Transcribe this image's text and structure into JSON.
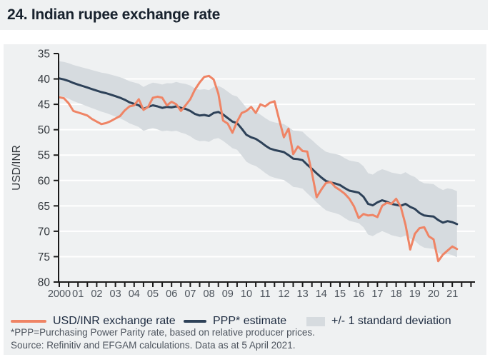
{
  "header": {
    "title": "24. Indian rupee exchange rate"
  },
  "colors": {
    "background": "#eff1f2",
    "gridline": "#ffffff",
    "axis": "#1a1a1a",
    "fx_line": "#ef8465",
    "ppp_line": "#2d4158",
    "band": "#d6dbdf",
    "y_tick_label": "#33383d",
    "x_tick_label": "#4d545c"
  },
  "chart_data": {
    "type": "line",
    "title": "24. Indian rupee exchange rate",
    "xlabel": "",
    "ylabel": "USD/INR",
    "grid": true,
    "legend_position": "bottom",
    "y_axis": {
      "min": 35,
      "max": 80,
      "step": 5,
      "inverted": true,
      "ticks": [
        35,
        40,
        45,
        50,
        55,
        60,
        65,
        70,
        75,
        80
      ]
    },
    "x_axis": {
      "start": 2000,
      "end": 2022,
      "minor_tick_step": 0.5,
      "tick_labels": [
        "2000",
        "01",
        "02",
        "03",
        "04",
        "05",
        "06",
        "07",
        "08",
        "09",
        "10",
        "11",
        "12",
        "13",
        "14",
        "15",
        "16",
        "17",
        "18",
        "19",
        "20",
        "21"
      ]
    },
    "x": [
      2000.0,
      2000.25,
      2000.5,
      2000.75,
      2001.0,
      2001.25,
      2001.5,
      2001.75,
      2002.0,
      2002.25,
      2002.5,
      2002.75,
      2003.0,
      2003.25,
      2003.5,
      2003.75,
      2004.0,
      2004.25,
      2004.5,
      2004.75,
      2005.0,
      2005.25,
      2005.5,
      2005.75,
      2006.0,
      2006.25,
      2006.5,
      2006.75,
      2007.0,
      2007.25,
      2007.5,
      2007.75,
      2008.0,
      2008.25,
      2008.5,
      2008.75,
      2009.0,
      2009.25,
      2009.5,
      2009.75,
      2010.0,
      2010.25,
      2010.5,
      2010.75,
      2011.0,
      2011.25,
      2011.5,
      2011.75,
      2012.0,
      2012.25,
      2012.5,
      2012.75,
      2013.0,
      2013.25,
      2013.5,
      2013.75,
      2014.0,
      2014.25,
      2014.5,
      2014.75,
      2015.0,
      2015.25,
      2015.5,
      2015.75,
      2016.0,
      2016.25,
      2016.5,
      2016.75,
      2017.0,
      2017.25,
      2017.5,
      2017.75,
      2018.0,
      2018.25,
      2018.5,
      2018.75,
      2019.0,
      2019.25,
      2019.5,
      2019.75,
      2020.0,
      2020.25,
      2020.5,
      2020.75,
      2021.0,
      2021.25
    ],
    "series": [
      {
        "name": "USD/INR exchange rate",
        "color": "#ef8465",
        "values": [
          43.6,
          43.8,
          44.8,
          46.3,
          46.6,
          46.9,
          47.2,
          47.9,
          48.4,
          48.9,
          48.7,
          48.3,
          47.8,
          47.3,
          46.2,
          45.4,
          45.2,
          44.0,
          46.1,
          45.5,
          43.7,
          43.5,
          43.7,
          45.2,
          44.5,
          45.0,
          46.3,
          45.2,
          44.0,
          42.1,
          40.7,
          39.6,
          39.4,
          40.1,
          42.9,
          48.2,
          48.8,
          50.6,
          48.4,
          46.7,
          46.3,
          45.5,
          46.7,
          45.0,
          45.4,
          44.7,
          44.4,
          48.0,
          51.5,
          49.8,
          54.8,
          53.3,
          54.2,
          54.3,
          58.5,
          63.3,
          61.8,
          60.5,
          60.3,
          61.3,
          61.9,
          62.6,
          63.6,
          65.1,
          67.4,
          66.6,
          66.9,
          66.8,
          67.2,
          65.0,
          64.4,
          64.6,
          63.6,
          65.2,
          68.7,
          73.6,
          70.5,
          69.4,
          69.2,
          71.0,
          71.6,
          75.9,
          74.6,
          73.8,
          73.0,
          73.5
        ]
      },
      {
        "name": "PPP* estimate",
        "color": "#2d4158",
        "values": [
          39.9,
          40.1,
          40.4,
          40.8,
          41.1,
          41.4,
          41.7,
          42.0,
          42.3,
          42.6,
          42.8,
          43.1,
          43.4,
          43.7,
          44.1,
          44.6,
          44.9,
          45.2,
          45.9,
          45.5,
          45.2,
          45.4,
          45.7,
          45.5,
          45.6,
          45.4,
          45.7,
          45.9,
          46.3,
          46.9,
          47.2,
          47.1,
          47.3,
          46.7,
          46.5,
          47.0,
          47.7,
          48.4,
          48.7,
          49.8,
          51.0,
          51.5,
          51.8,
          52.4,
          53.1,
          53.7,
          54.0,
          54.2,
          54.4,
          55.0,
          55.7,
          55.8,
          56.0,
          56.9,
          57.7,
          58.6,
          59.4,
          60.1,
          60.4,
          60.6,
          60.9,
          61.5,
          62.0,
          62.2,
          62.4,
          63.2,
          64.6,
          64.9,
          64.3,
          63.9,
          64.2,
          64.6,
          64.8,
          65.0,
          64.6,
          65.2,
          65.6,
          66.4,
          66.9,
          67.0,
          67.1,
          67.8,
          68.3,
          68.0,
          68.2,
          68.6
        ]
      },
      {
        "name": "+/- 1 standard deviation",
        "type": "band",
        "around": "PPP* estimate",
        "color": "#d6dbdf",
        "halfwidth": [
          3.4,
          3.45,
          3.5,
          3.55,
          3.6,
          3.65,
          3.7,
          3.75,
          3.8,
          3.85,
          3.9,
          3.95,
          4.0,
          4.05,
          4.1,
          4.15,
          4.2,
          4.27,
          4.33,
          4.4,
          4.47,
          4.53,
          4.6,
          4.67,
          4.73,
          4.8,
          4.87,
          4.93,
          5.0,
          5.03,
          5.05,
          5.08,
          5.1,
          5.13,
          5.15,
          5.18,
          5.2,
          5.23,
          5.25,
          5.28,
          5.3,
          5.33,
          5.35,
          5.38,
          5.4,
          5.43,
          5.45,
          5.48,
          5.5,
          5.53,
          5.55,
          5.58,
          5.6,
          5.63,
          5.67,
          5.7,
          5.73,
          5.77,
          5.8,
          5.83,
          5.87,
          5.9,
          5.93,
          5.97,
          6.0,
          6.02,
          6.05,
          6.07,
          6.1,
          6.12,
          6.14,
          6.17,
          6.19,
          6.21,
          6.24,
          6.26,
          6.29,
          6.31,
          6.33,
          6.36,
          6.38,
          6.4,
          6.43,
          6.45,
          6.48,
          6.5
        ]
      }
    ]
  },
  "legend": {
    "items": [
      {
        "label": "USD/INR exchange rate",
        "swatch": "line",
        "color": "#ef8465"
      },
      {
        "label": "PPP* estimate",
        "swatch": "line",
        "color": "#2d4158"
      },
      {
        "label": "+/- 1 standard deviation",
        "swatch": "band",
        "color": "#d6dbdf"
      }
    ]
  },
  "footnotes": {
    "line1": "*PPP=Purchasing Power Parity rate, based on relative producer prices.",
    "line2": "Source: Refinitiv and EFGAM calculations. Data as at 5 April 2021."
  }
}
